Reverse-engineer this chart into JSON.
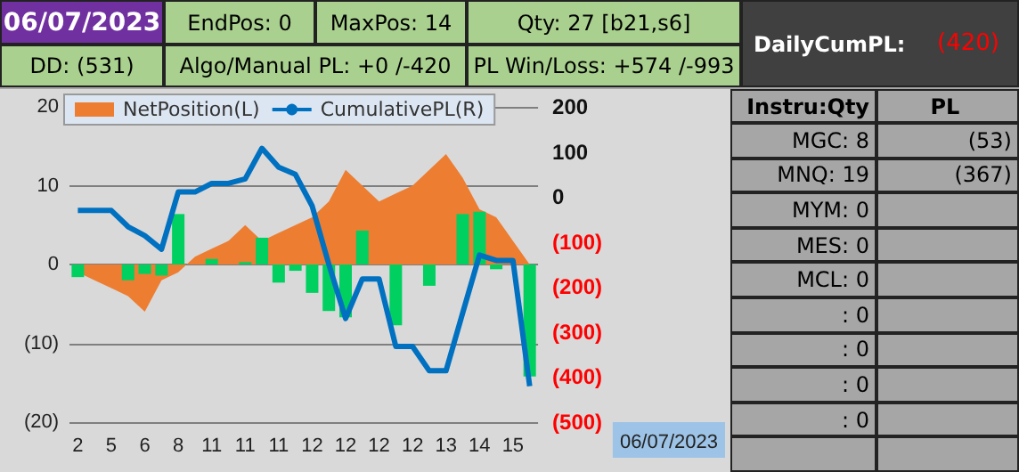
{
  "chart_data": [
    {
      "type": "other",
      "annotations": [
        "06/07/2023",
        "EndPos: 0",
        "MaxPos: 14",
        "Qty: 27 [b21,s6]",
        "DD: (531)",
        "Algo/Manual PL: +0 /-420",
        "PL Win/Loss: +574 /-993",
        "DailyCumPL:",
        "(420)"
      ]
    },
    {
      "type": "area",
      "xlabel": "06/07/2023",
      "categories": [
        "2",
        null,
        "5",
        null,
        "6",
        null,
        "8",
        null,
        "11",
        null,
        "11",
        null,
        "11",
        null,
        "12",
        null,
        "12",
        null,
        "12",
        null,
        "12",
        null,
        "13",
        null,
        "14",
        null,
        "15",
        null
      ],
      "series": [
        {
          "name": "NetPosition(L)",
          "type": "area",
          "color": "#ed7d31",
          "values": [
            -1,
            -2,
            -3,
            -4,
            -6,
            -2,
            -1,
            1,
            2,
            3,
            5,
            3,
            4,
            5,
            6,
            8,
            12,
            10,
            8,
            9,
            10,
            12,
            14,
            11,
            7,
            6,
            3,
            0
          ]
        },
        {
          "name": "CumulativePL(R)",
          "type": "line",
          "axis": "y2",
          "color": "#0070c0",
          "values": [
            -30,
            -30,
            -30,
            -66,
            -86,
            -116,
            11,
            11,
            30,
            30,
            40,
            108,
            66,
            50,
            -20,
            -150,
            -270,
            -182,
            -182,
            -332,
            -332,
            -386,
            -386,
            -257,
            -129,
            -141,
            -141,
            -420
          ]
        },
        {
          "type": "bar",
          "color": "#00d060",
          "values": [
            -1.6,
            null,
            null,
            -2,
            -1.2,
            -1.4,
            6.4,
            null,
            0.7,
            null,
            0.3,
            3.4,
            -2.3,
            -0.8,
            -3.6,
            -5.9,
            -6.7,
            4.3,
            null,
            -7.7,
            null,
            -2.7,
            null,
            6.4,
            6.7,
            -0.6,
            null,
            -14.2
          ]
        }
      ],
      "ylim": [
        -20,
        20
      ],
      "yticks": [
        20,
        10,
        0,
        {
          "value": -10,
          "label": "(10)"
        },
        {
          "value": -20,
          "label": "(20)"
        }
      ],
      "y2lim": [
        -500,
        200
      ],
      "y2ticks": [
        200,
        100,
        0,
        {
          "value": -100,
          "label": "(100)"
        },
        {
          "value": -200,
          "label": "(200)"
        },
        {
          "value": -300,
          "label": "(300)"
        },
        {
          "value": -400,
          "label": "(400)"
        },
        {
          "value": -500,
          "label": "(500)"
        }
      ],
      "grid": "y",
      "legend": "top",
      "marker": "none"
    },
    {
      "type": "other",
      "categories": [
        "Instru:Qty",
        "PL"
      ],
      "y_categories": [
        "MGC: 8",
        "MNQ: 19",
        "MYM: 0",
        "MES: 0",
        "MCL: 0",
        ": 0",
        ": 0",
        ": 0",
        ": 0",
        null
      ],
      "cell_labels": [
        [
          "(53)"
        ],
        [
          "(367)"
        ],
        [
          null
        ],
        [
          null
        ],
        [
          null
        ],
        [
          null
        ],
        [
          null
        ],
        [
          null
        ],
        [
          null
        ],
        [
          null
        ]
      ]
    }
  ]
}
